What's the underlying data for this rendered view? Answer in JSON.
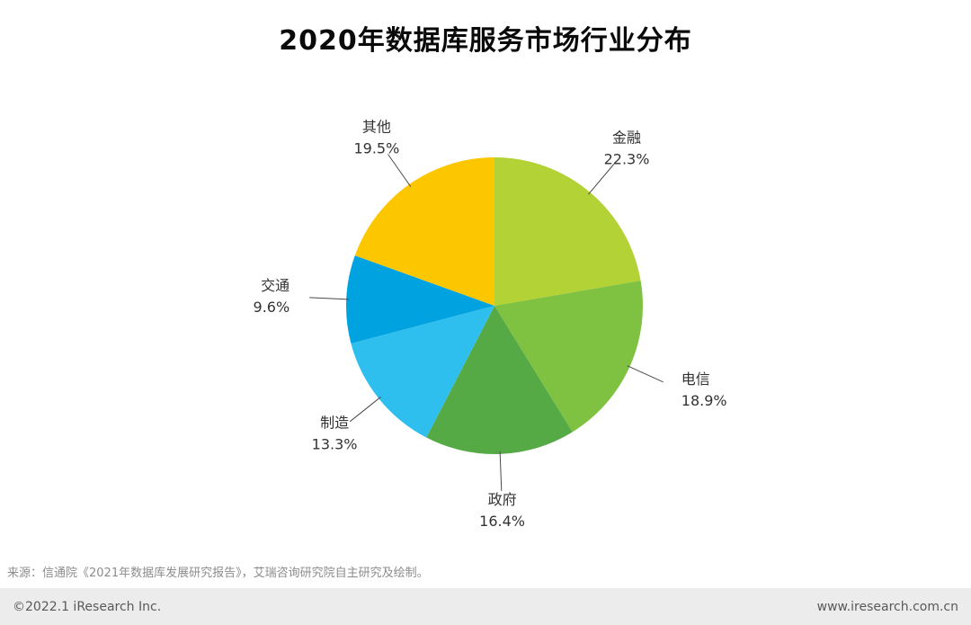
{
  "title": "2020年数据库服务市场行业分布",
  "source": "来源：信通院《2021年数据库发展研究报告》，艾瑞咨询研究院自主研究及绘制。",
  "footer": {
    "left": "©2022.1 iResearch Inc.",
    "right": "www.iresearch.com.cn"
  },
  "chart_data": {
    "type": "pie",
    "title": "2020年数据库服务市场行业分布",
    "labels": [
      "金融",
      "电信",
      "政府",
      "制造",
      "交通",
      "其他"
    ],
    "values": [
      22.3,
      18.9,
      16.4,
      13.3,
      9.6,
      19.5
    ],
    "unit": "%",
    "colors": [
      "#b3d235",
      "#7fc241",
      "#56aa45",
      "#2fbfee",
      "#00a3e0",
      "#fdc700"
    ],
    "start_angle_deg": 0,
    "direction": "clockwise",
    "legend_position": "outside-labels",
    "label_color": "#333333",
    "leader_line_color": "#4a4a4a"
  }
}
